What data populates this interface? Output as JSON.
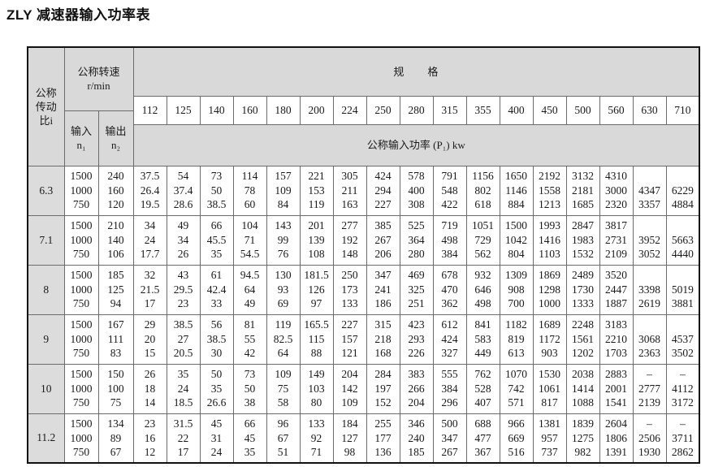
{
  "title": "ZLY 减速器输入功率表",
  "colors": {
    "header_bg": "#d9d9d9",
    "ratio_col_bg": "#dcdcdc",
    "border": "#6b6b6b"
  },
  "table": {
    "header": {
      "ratio_label": "公称\n传动\n比i",
      "speed_label": "公称转速\nr/min",
      "input_label": "输入\nn₁",
      "output_label": "输出\nn₂",
      "spec_label": "规　　格",
      "power_label": "公称输入功率 (P₁) kw",
      "specs": [
        "112",
        "125",
        "140",
        "160",
        "180",
        "200",
        "224",
        "250",
        "280",
        "315",
        "355",
        "400",
        "450",
        "500",
        "560",
        "630",
        "710"
      ]
    },
    "rows": [
      {
        "ratio": "6.3",
        "n1": "1500\n1000\n750",
        "n2": "240\n160\n120",
        "values": [
          "37.5\n26.4\n19.5",
          "54\n37.4\n28.6",
          "73\n50\n38.5",
          "114\n78\n60",
          "157\n109\n84",
          "221\n153\n119",
          "305\n211\n163",
          "424\n294\n227",
          "578\n400\n308",
          "791\n548\n422",
          "1156\n802\n618",
          "1650\n1146\n884",
          "2192\n1558\n1213",
          "3132\n2181\n1685",
          "4310\n3000\n2320",
          "\n4347\n3357",
          "\n6229\n4884"
        ]
      },
      {
        "ratio": "7.1",
        "n1": "1500\n1000\n750",
        "n2": "210\n140\n106",
        "values": [
          "34\n24\n17.7",
          "49\n34\n26",
          "66\n45.5\n35",
          "104\n71\n54.5",
          "143\n99\n76",
          "201\n139\n108",
          "277\n192\n148",
          "385\n267\n206",
          "525\n364\n280",
          "719\n498\n384",
          "1051\n729\n562",
          "1500\n1042\n804",
          "1993\n1416\n1103",
          "2847\n1983\n1532",
          "3817\n2731\n2109",
          "\n3952\n3052",
          "\n5663\n4440"
        ]
      },
      {
        "ratio": "8",
        "n1": "1500\n1000\n750",
        "n2": "185\n125\n94",
        "values": [
          "32\n21.5\n17",
          "43\n29.5\n23",
          "61\n42.4\n33",
          "94.5\n64\n49",
          "130\n93\n69",
          "181.5\n126\n97",
          "250\n173\n133",
          "347\n241\n186",
          "469\n325\n251",
          "678\n470\n362",
          "932\n646\n498",
          "1309\n908\n700",
          "1869\n1298\n1000",
          "2489\n1730\n1333",
          "3520\n2447\n1887",
          "\n3398\n2619",
          "\n5019\n3881"
        ]
      },
      {
        "ratio": "9",
        "n1": "1500\n1000\n750",
        "n2": "167\n111\n83",
        "values": [
          "29\n20\n15",
          "38.5\n27\n20.5",
          "56\n38.5\n30",
          "81\n55\n42",
          "119\n82.5\n64",
          "165.5\n115\n88",
          "227\n157\n121",
          "315\n218\n168",
          "423\n293\n226",
          "612\n424\n327",
          "841\n583\n449",
          "1182\n819\n613",
          "1689\n1172\n903",
          "2248\n1561\n1202",
          "3183\n2210\n1703",
          "\n3068\n2363",
          "\n4537\n3502"
        ]
      },
      {
        "ratio": "10",
        "n1": "1500\n1000\n750",
        "n2": "150\n100\n75",
        "values": [
          "26\n18\n14",
          "35\n24\n18.5",
          "50\n35\n26.6",
          "73\n50\n38",
          "109\n75\n58",
          "149\n103\n80",
          "204\n142\n109",
          "284\n197\n152",
          "383\n266\n204",
          "555\n384\n296",
          "762\n528\n407",
          "1070\n742\n571",
          "1530\n1061\n817",
          "2038\n1414\n1088",
          "2883\n2001\n1541",
          "–\n2777\n2139",
          "–\n4112\n3172"
        ]
      },
      {
        "ratio": "11.2",
        "n1": "1500\n1000\n750",
        "n2": "134\n89\n67",
        "values": [
          "23\n16\n12",
          "31.5\n22\n17",
          "45\n31\n24",
          "66\n45\n35",
          "96\n67\n51",
          "133\n92\n71",
          "184\n127\n98",
          "255\n177\n136",
          "346\n240\n185",
          "500\n347\n267",
          "688\n477\n367",
          "966\n669\n516",
          "1381\n957\n737",
          "1839\n1275\n982",
          "2604\n1806\n1391",
          "–\n2506\n1930",
          "–\n3711\n2862"
        ]
      }
    ]
  }
}
